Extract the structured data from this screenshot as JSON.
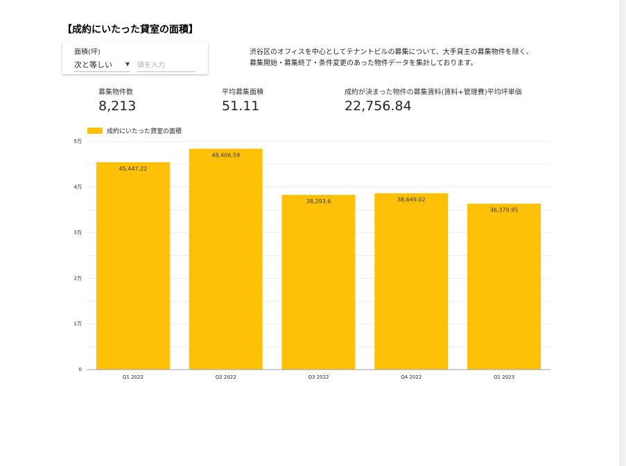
{
  "title": "【成約にいたった貸室の面積】",
  "filter": {
    "label": "面積(坪)",
    "operator": "次と等しい",
    "placeholder": "値を入力"
  },
  "description": {
    "line1": "渋谷区のオフィスを中心としてテナントビルの募集について、大手貸主の募集物件を除く、",
    "line2": "募集開始・募集終了・条件変更のあった物件データを集計しております。"
  },
  "kpis": {
    "listings_label": "募集物件数",
    "listings_value": "8,213",
    "avg_area_label": "平均募集面積",
    "avg_area_value": "51.11",
    "avg_price_label": "成約が決まった物件の募集賃料(賃料+管理費)平均坪単価",
    "avg_price_value": "22,756.84"
  },
  "colors": {
    "bar": "#FFC107",
    "grid": "#ebebeb",
    "axis": "#9e9e9e"
  },
  "chart_data": {
    "type": "bar",
    "legend": "成約にいたった貸室の面積",
    "legend_position": "top-left",
    "categories": [
      "Q1 2022",
      "Q2 2022",
      "Q3 2022",
      "Q4 2022",
      "Q1 2023"
    ],
    "series": [
      {
        "name": "成約にいたった貸室の面積",
        "values": [
          45447.22,
          48406.59,
          38293.6,
          38649.02,
          36379.95
        ],
        "labels": [
          "45,447.22",
          "48,406.59",
          "38,293.6",
          "38,649.02",
          "36,379.95"
        ]
      }
    ],
    "ylim": [
      0,
      50000
    ],
    "yticks": [
      0,
      10000,
      20000,
      30000,
      40000,
      50000
    ],
    "ytick_labels": [
      "0",
      "1万",
      "2万",
      "3万",
      "4万",
      "5万"
    ],
    "grid": true
  }
}
